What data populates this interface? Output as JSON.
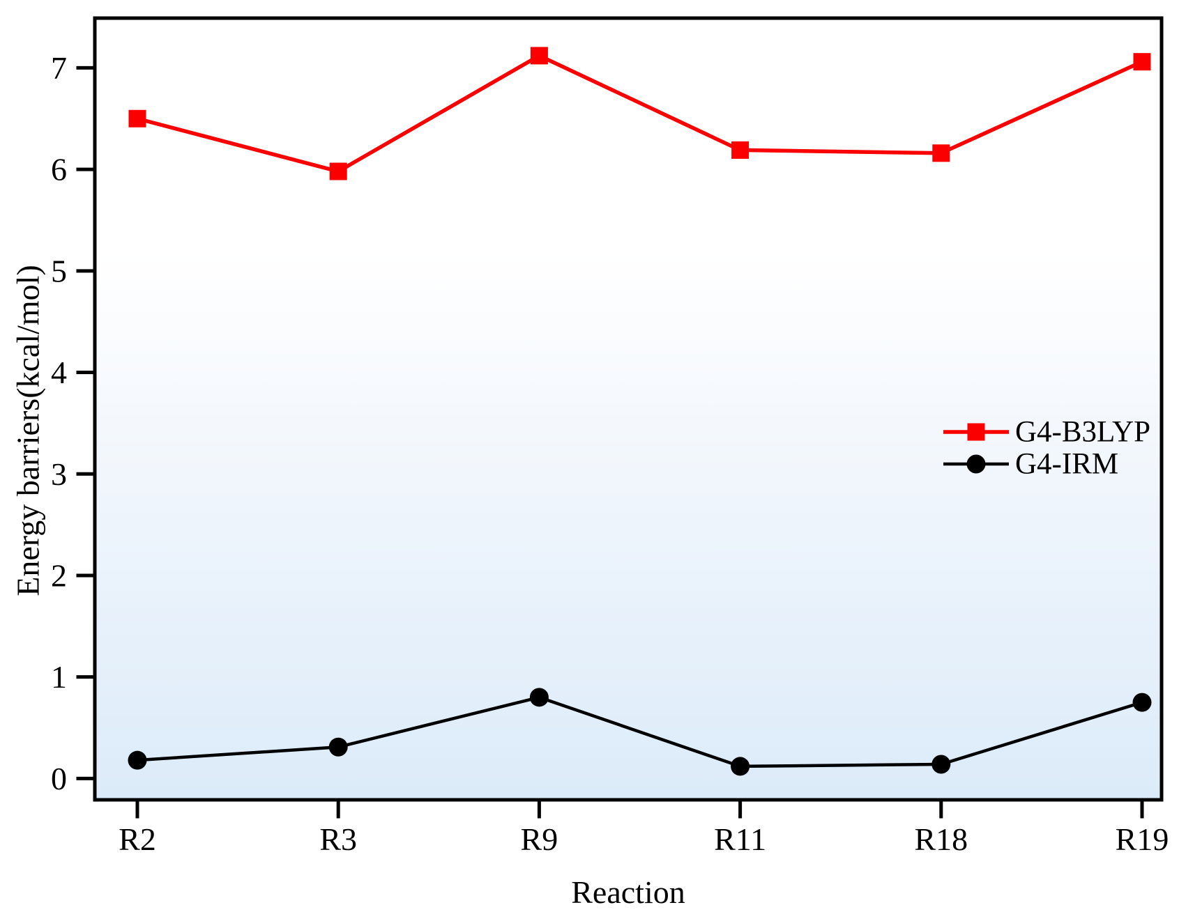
{
  "chart_data": {
    "type": "line",
    "title": "",
    "xlabel": "Reaction",
    "ylabel": "Energy barriers(kcal/mol)",
    "categories": [
      "R2",
      "R3",
      "R9",
      "R11",
      "R18",
      "R19"
    ],
    "series": [
      {
        "name": "G4-B3LYP",
        "color": "#fa0000",
        "marker": "square",
        "line_width": 5.5,
        "values": [
          6.5,
          5.98,
          7.12,
          6.19,
          6.16,
          7.06
        ]
      },
      {
        "name": "G4-IRM",
        "color": "#000000",
        "marker": "circle",
        "line_width": 4.5,
        "values": [
          0.18,
          0.31,
          0.8,
          0.12,
          0.14,
          0.75
        ]
      }
    ],
    "yticks": [
      0,
      1,
      2,
      3,
      4,
      5,
      6,
      7
    ],
    "ylim": [
      -0.21,
      7.49
    ],
    "grid": false,
    "legend_position": "center-right",
    "axis_color": "#000000",
    "plot_background": {
      "top": "#ffffff",
      "mid": "#eff5fc",
      "bottom": "#dcebf9"
    }
  }
}
